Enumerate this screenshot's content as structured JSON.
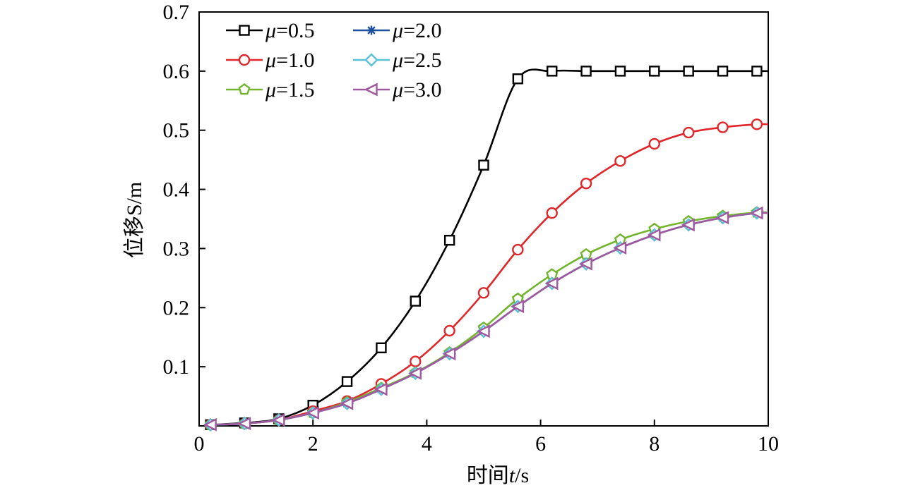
{
  "chart_data": {
    "type": "line",
    "xlabel_prefix": "时间",
    "xlabel_var": "t",
    "xlabel_unit": "/s",
    "ylabel": "位移S/m",
    "xlim": [
      0,
      10
    ],
    "ylim": [
      0,
      0.7
    ],
    "x_ticks": [
      0,
      2,
      4,
      6,
      8,
      10
    ],
    "x_tick_labels": [
      "0",
      "2",
      "4",
      "6",
      "8",
      "10"
    ],
    "y_ticks": [
      0.1,
      0.2,
      0.3,
      0.4,
      0.5,
      0.6,
      0.7
    ],
    "y_tick_labels": [
      "0.1",
      "0.2",
      "0.3",
      "0.4",
      "0.5",
      "0.6",
      "0.7"
    ],
    "grid": false,
    "legend_position": "top-left",
    "legend_symbol": "μ",
    "x": [
      0.2,
      0.8,
      1.4,
      2.0,
      2.6,
      3.2,
      3.8,
      4.4,
      5.0,
      5.6,
      6.2,
      6.8,
      7.4,
      8.0,
      8.6,
      9.2,
      9.8
    ],
    "series": [
      {
        "name": "=0.5",
        "color": "#000000",
        "marker": "square",
        "values": [
          0.002,
          0.005,
          0.012,
          0.035,
          0.075,
          0.132,
          0.211,
          0.314,
          0.441,
          0.587,
          0.6,
          0.6,
          0.6,
          0.6,
          0.6,
          0.6,
          0.6
        ]
      },
      {
        "name": "=1.0",
        "color": "#e0262a",
        "marker": "circle",
        "values": [
          0.002,
          0.004,
          0.01,
          0.025,
          0.042,
          0.071,
          0.109,
          0.161,
          0.225,
          0.298,
          0.36,
          0.41,
          0.448,
          0.477,
          0.496,
          0.505,
          0.51
        ]
      },
      {
        "name": "=1.5",
        "color": "#72b52c",
        "marker": "pentagon",
        "values": [
          0.002,
          0.004,
          0.01,
          0.022,
          0.04,
          0.064,
          0.09,
          0.124,
          0.166,
          0.215,
          0.256,
          0.29,
          0.315,
          0.333,
          0.346,
          0.355,
          0.361
        ]
      },
      {
        "name": "=2.0",
        "color": "#1d4f9a",
        "marker": "star",
        "values": [
          0.002,
          0.004,
          0.01,
          0.022,
          0.038,
          0.062,
          0.089,
          0.122,
          0.16,
          0.202,
          0.241,
          0.274,
          0.301,
          0.323,
          0.34,
          0.352,
          0.36
        ]
      },
      {
        "name": "=2.5",
        "color": "#5bc1d6",
        "marker": "diamond",
        "values": [
          0.002,
          0.004,
          0.01,
          0.022,
          0.038,
          0.062,
          0.089,
          0.122,
          0.16,
          0.202,
          0.241,
          0.274,
          0.301,
          0.323,
          0.34,
          0.352,
          0.36
        ]
      },
      {
        "name": "=3.0",
        "color": "#a0589f",
        "marker": "triangle-left",
        "values": [
          0.002,
          0.004,
          0.01,
          0.022,
          0.038,
          0.062,
          0.089,
          0.122,
          0.16,
          0.202,
          0.241,
          0.274,
          0.301,
          0.323,
          0.34,
          0.352,
          0.36
        ]
      }
    ]
  }
}
